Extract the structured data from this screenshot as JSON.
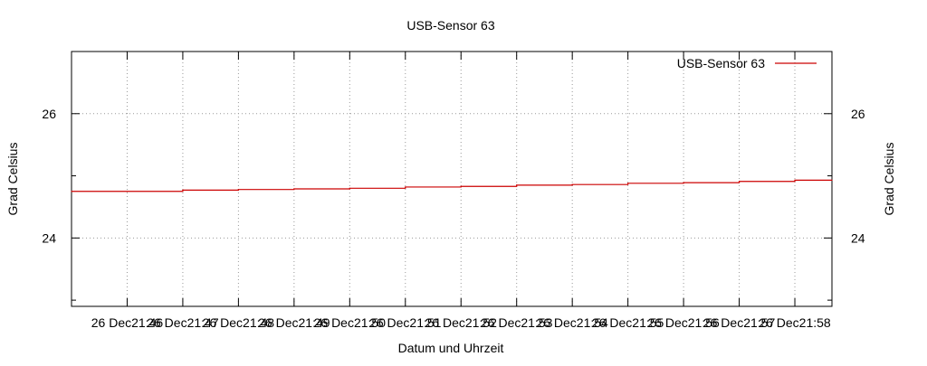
{
  "chart_data": {
    "type": "line",
    "title": "USB-Sensor 63",
    "xlabel": "Datum und Uhrzeit",
    "ylabel": "Grad Celsius",
    "y2label": "Grad Celsius",
    "ylim": [
      22.9,
      27.0
    ],
    "y_ticks": [
      "24",
      "26"
    ],
    "x_ticks": [
      "26 Dec21:46",
      "26 Dec21:47",
      "26 Dec21:48",
      "26 Dec21:49",
      "26 Dec21:50",
      "26 Dec21:51",
      "26 Dec21:52",
      "26 Dec21:53",
      "26 Dec21:54",
      "26 Dec21:55",
      "26 Dec21:56",
      "26 Dec21:57",
      "26 Dec21:58"
    ],
    "legend": "top-right",
    "grid": true,
    "series": [
      {
        "name": "USB-Sensor 63",
        "color": "#cc0000",
        "x": [
          "21:45",
          "21:46",
          "21:47",
          "21:48",
          "21:49",
          "21:50",
          "21:51",
          "21:52",
          "21:53",
          "21:54",
          "21:55",
          "21:56",
          "21:57",
          "21:58",
          "21:58:40"
        ],
        "values": [
          24.75,
          24.75,
          24.77,
          24.78,
          24.79,
          24.8,
          24.82,
          24.83,
          24.85,
          24.86,
          24.88,
          24.89,
          24.91,
          24.93,
          24.93
        ]
      }
    ]
  }
}
